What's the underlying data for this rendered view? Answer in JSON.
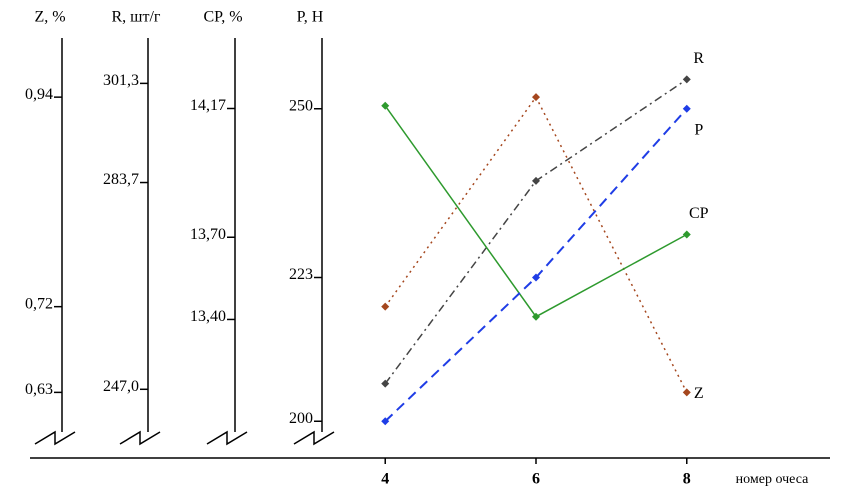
{
  "chart_data": {
    "type": "line",
    "x": [
      4,
      6,
      8
    ],
    "xlim": [
      3.4,
      9.9
    ],
    "xlabel": "номер очеса",
    "axes": [
      {
        "label": "Z, %",
        "ylim": [
          0.58,
          1.0
        ],
        "yticks": [
          {
            "value": 0.63,
            "label": "0,63"
          },
          {
            "value": 0.72,
            "label": "0,72"
          },
          {
            "value": 0.94,
            "label": "0,94"
          }
        ]
      },
      {
        "label": "R, шт/г",
        "ylim": [
          238,
          309
        ],
        "yticks": [
          {
            "value": 247.0,
            "label": "247,0"
          },
          {
            "value": 283.7,
            "label": "283,7"
          },
          {
            "value": 301.3,
            "label": "301,3"
          }
        ]
      },
      {
        "label": "CP, %",
        "ylim": [
          12.96,
          14.42
        ],
        "yticks": [
          {
            "value": 13.4,
            "label": "13,40"
          },
          {
            "value": 13.7,
            "label": "13,70"
          },
          {
            "value": 14.17,
            "label": "14,17"
          }
        ]
      },
      {
        "label": "P, H",
        "ylim": [
          197,
          261
        ],
        "yticks": [
          200,
          223,
          250
        ]
      }
    ],
    "series": [
      {
        "name": "Z",
        "axis": 0,
        "color": "#a5471e",
        "style": "dotted",
        "values": [
          0.72,
          0.94,
          0.63
        ]
      },
      {
        "name": "R",
        "axis": 1,
        "color": "#444444",
        "style": "dashdot",
        "values": [
          248,
          284,
          302
        ]
      },
      {
        "name": "CP",
        "axis": 2,
        "color": "#2e9a2e",
        "style": "solid",
        "values": [
          14.18,
          13.41,
          13.71
        ]
      },
      {
        "name": "P",
        "axis": 3,
        "color": "#1f3de6",
        "style": "dashed",
        "values": [
          200,
          223,
          250
        ]
      }
    ]
  }
}
